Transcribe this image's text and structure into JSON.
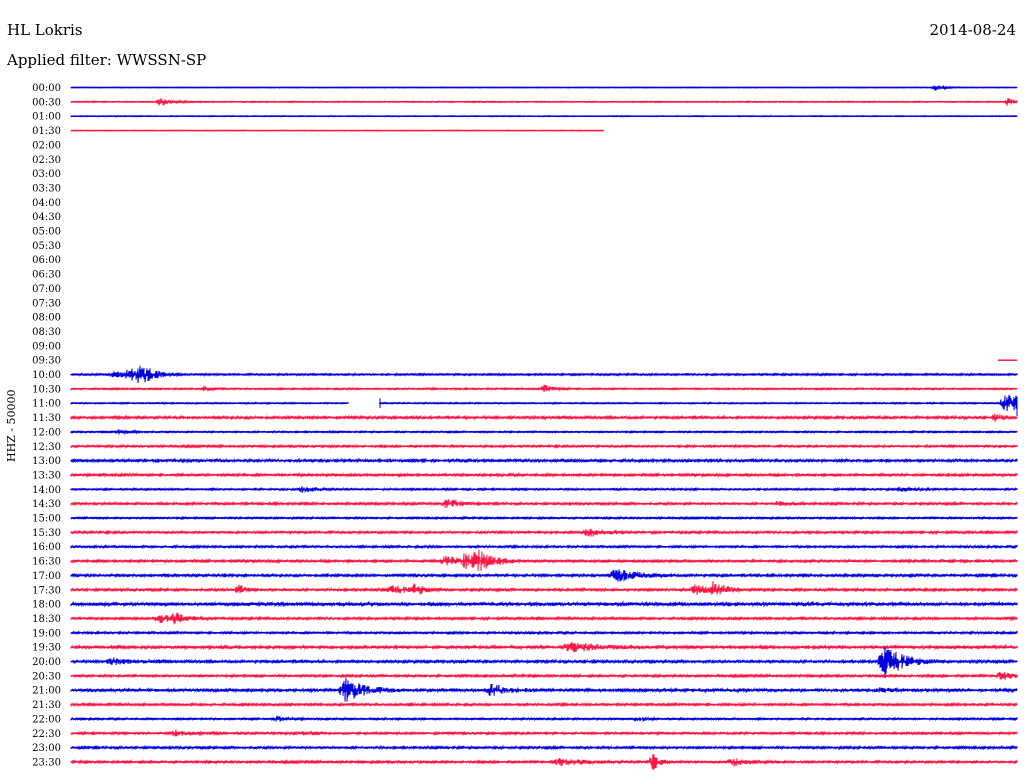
{
  "header": {
    "station": "HL Lokris",
    "date": "2014-08-24",
    "filter": "Applied filter: WWSSN-SP"
  },
  "channel_label": "HHZ - 50000",
  "colors": {
    "even_row": "#0000dd",
    "odd_row": "#ff1744"
  },
  "chart_data": {
    "type": "line",
    "title": "HL Lokris",
    "subtitle": "Applied filter: WWSSN-SP",
    "ylabel": "HHZ - 50000",
    "grid": false,
    "y_tick_labels": [
      "00:00",
      "00:30",
      "01:00",
      "01:30",
      "02:00",
      "02:30",
      "03:00",
      "03:30",
      "04:00",
      "04:30",
      "05:00",
      "05:30",
      "06:00",
      "06:30",
      "07:00",
      "07:30",
      "08:00",
      "08:30",
      "09:00",
      "09:30",
      "10:00",
      "10:30",
      "11:00",
      "11:30",
      "12:00",
      "12:30",
      "13:00",
      "13:30",
      "14:00",
      "14:30",
      "15:00",
      "15:30",
      "16:00",
      "16:30",
      "17:00",
      "17:30",
      "18:00",
      "18:30",
      "19:00",
      "19:30",
      "20:00",
      "20:30",
      "21:00",
      "21:30",
      "22:00",
      "22:30",
      "23:00",
      "23:30"
    ],
    "x_range_minutes": [
      0,
      30
    ],
    "series": [
      {
        "row": "00:00",
        "start": 0,
        "end": 30,
        "noise": 0.3,
        "events": [
          [
            27.4,
            3,
            0.3
          ]
        ]
      },
      {
        "row": "00:30",
        "start": 0,
        "end": 30,
        "noise": 0.5,
        "events": [
          [
            2.8,
            4,
            0.35
          ],
          [
            29.7,
            4,
            0.3
          ]
        ]
      },
      {
        "row": "01:00",
        "start": 0,
        "end": 30,
        "noise": 0.4,
        "events": []
      },
      {
        "row": "01:30",
        "start": 0,
        "end": 16.9,
        "noise": 0.3,
        "events": []
      },
      {
        "row": "09:30",
        "start": 29.4,
        "end": 30,
        "noise": 0.2,
        "events": []
      },
      {
        "row": "10:00",
        "start": 0,
        "end": 30,
        "noise": 0.8,
        "events": [
          [
            1.4,
            4,
            0.7
          ],
          [
            1.9,
            5,
            0.5
          ],
          [
            2.2,
            7,
            0.4
          ]
        ]
      },
      {
        "row": "10:30",
        "start": 0,
        "end": 30,
        "noise": 0.7,
        "events": [
          [
            4.2,
            3,
            0.2
          ],
          [
            15.0,
            4,
            0.3
          ]
        ]
      },
      {
        "row": "11:00",
        "start": 0,
        "end": 30,
        "noise": 0.6,
        "gap": [
          8.8,
          9.8
        ],
        "events": [
          [
            29.6,
            12,
            0.5
          ],
          [
            30.0,
            7,
            0.2
          ]
        ]
      },
      {
        "row": "11:30",
        "start": 0,
        "end": 30,
        "noise": 1.2,
        "events": [
          [
            29.3,
            3,
            0.4
          ]
        ]
      },
      {
        "row": "12:00",
        "start": 0,
        "end": 30,
        "noise": 0.7,
        "events": [
          [
            1.5,
            2,
            0.4
          ]
        ]
      },
      {
        "row": "12:30",
        "start": 0,
        "end": 30,
        "noise": 0.9,
        "events": []
      },
      {
        "row": "13:00",
        "start": 0,
        "end": 30,
        "noise": 1.2,
        "events": []
      },
      {
        "row": "13:30",
        "start": 0,
        "end": 30,
        "noise": 1.1,
        "events": []
      },
      {
        "row": "14:00",
        "start": 0,
        "end": 30,
        "noise": 0.8,
        "events": [
          [
            7.3,
            3,
            0.5
          ],
          [
            26.3,
            2,
            0.4
          ]
        ]
      },
      {
        "row": "14:30",
        "start": 0,
        "end": 30,
        "noise": 1.0,
        "events": [
          [
            11.9,
            6,
            0.4
          ],
          [
            22.4,
            2,
            0.4
          ]
        ]
      },
      {
        "row": "15:00",
        "start": 0,
        "end": 30,
        "noise": 0.8,
        "events": []
      },
      {
        "row": "15:30",
        "start": 0,
        "end": 30,
        "noise": 1.0,
        "events": [
          [
            16.4,
            5,
            0.4
          ]
        ]
      },
      {
        "row": "16:00",
        "start": 0,
        "end": 30,
        "noise": 0.9,
        "events": []
      },
      {
        "row": "16:30",
        "start": 0,
        "end": 30,
        "noise": 1.1,
        "events": [
          [
            11.9,
            5,
            0.6
          ],
          [
            12.5,
            6,
            0.5
          ],
          [
            12.9,
            8,
            0.5
          ]
        ]
      },
      {
        "row": "17:00",
        "start": 0,
        "end": 30,
        "noise": 1.1,
        "events": [
          [
            17.3,
            8,
            0.6
          ]
        ]
      },
      {
        "row": "17:30",
        "start": 0,
        "end": 30,
        "noise": 1.1,
        "events": [
          [
            5.3,
            5,
            0.3
          ],
          [
            10.2,
            4,
            0.6
          ],
          [
            10.9,
            5,
            0.3
          ],
          [
            19.8,
            5,
            0.5
          ],
          [
            20.4,
            9,
            0.3
          ]
        ]
      },
      {
        "row": "18:00",
        "start": 0,
        "end": 30,
        "noise": 1.7,
        "events": []
      },
      {
        "row": "18:30",
        "start": 0,
        "end": 30,
        "noise": 1.0,
        "events": [
          [
            2.8,
            4,
            0.6
          ],
          [
            3.3,
            5,
            0.3
          ]
        ]
      },
      {
        "row": "19:00",
        "start": 0,
        "end": 30,
        "noise": 0.9,
        "events": []
      },
      {
        "row": "19:30",
        "start": 0,
        "end": 30,
        "noise": 1.5,
        "events": [
          [
            15.9,
            4,
            1.0
          ]
        ]
      },
      {
        "row": "20:00",
        "start": 0,
        "end": 30,
        "noise": 1.2,
        "events": [
          [
            1.3,
            3,
            0.6
          ],
          [
            25.8,
            16,
            0.6
          ]
        ]
      },
      {
        "row": "20:30",
        "start": 0,
        "end": 30,
        "noise": 1.0,
        "events": [
          [
            29.5,
            4,
            0.5
          ]
        ]
      },
      {
        "row": "21:00",
        "start": 0,
        "end": 30,
        "noise": 1.4,
        "events": [
          [
            8.7,
            12,
            0.6
          ],
          [
            13.3,
            7,
            0.5
          ],
          [
            25.6,
            3,
            0.3
          ]
        ]
      },
      {
        "row": "21:30",
        "start": 0,
        "end": 30,
        "noise": 1.0,
        "events": []
      },
      {
        "row": "22:00",
        "start": 0,
        "end": 30,
        "noise": 0.8,
        "events": [
          [
            6.5,
            3,
            0.3
          ],
          [
            17.9,
            3,
            0.2
          ]
        ]
      },
      {
        "row": "22:30",
        "start": 0,
        "end": 30,
        "noise": 0.9,
        "events": [
          [
            3.3,
            3,
            0.5
          ],
          [
            7.3,
            2,
            0.3
          ]
        ]
      },
      {
        "row": "23:00",
        "start": 0,
        "end": 30,
        "noise": 1.0,
        "events": []
      },
      {
        "row": "23:30",
        "start": 0,
        "end": 30,
        "noise": 1.0,
        "events": [
          [
            15.5,
            4,
            0.7
          ],
          [
            18.4,
            11,
            0.2
          ],
          [
            21.0,
            4,
            0.5
          ]
        ]
      }
    ]
  }
}
